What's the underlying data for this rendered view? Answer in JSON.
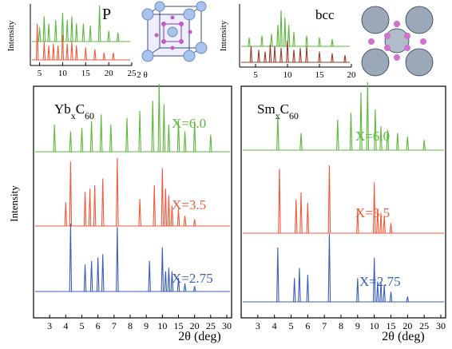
{
  "chart_data": [
    {
      "type": "stick",
      "title": "P",
      "xlabel": "2 θ",
      "ylabel": "Intensity",
      "xlim": [
        3,
        25
      ],
      "xticks": [
        5,
        10,
        15,
        20,
        25
      ],
      "ylim": [
        0,
        100
      ],
      "series": [
        {
          "color": "#5cb83a",
          "x": [
            5,
            6,
            7,
            8.5,
            10,
            11,
            12,
            13,
            14.5,
            16,
            18,
            20,
            22
          ],
          "values": [
            40,
            70,
            50,
            60,
            80,
            60,
            70,
            50,
            50,
            45,
            100,
            30,
            25
          ]
        },
        {
          "color": "#ef5a3c",
          "x": [
            4.5,
            6,
            7,
            8,
            9,
            10,
            11,
            12,
            13,
            15,
            17,
            19,
            21
          ],
          "values": [
            100,
            50,
            40,
            45,
            40,
            70,
            45,
            50,
            40,
            35,
            30,
            20,
            20
          ]
        }
      ]
    },
    {
      "type": "stick",
      "title": "bcc",
      "ylabel": "Intensity",
      "xlim": [
        2.5,
        20
      ],
      "xticks": [
        5,
        10,
        15,
        20
      ],
      "ylim": [
        0,
        100
      ],
      "series": [
        {
          "color": "#5cb83a",
          "x": [
            4,
            6,
            7.5,
            8.5,
            9,
            9.6,
            10.2,
            11,
            13,
            15,
            17
          ],
          "values": [
            25,
            30,
            35,
            60,
            100,
            80,
            60,
            40,
            30,
            25,
            20
          ]
        },
        {
          "color": "#9b3a2a",
          "x": [
            4.3,
            5.5,
            6.5,
            7.3,
            8,
            9,
            10,
            11,
            12,
            13,
            15,
            17,
            19
          ],
          "values": [
            45,
            35,
            30,
            50,
            45,
            40,
            60,
            35,
            40,
            45,
            30,
            25,
            20
          ]
        }
      ]
    },
    {
      "type": "stick",
      "title": [
        "Yb",
        "x",
        "C",
        "60"
      ],
      "xlabel": "2θ (deg)",
      "ylabel": "Intensity",
      "xscale": "tick-spaced",
      "xlim": [
        2,
        30
      ],
      "xticks": [
        3,
        4,
        5,
        6,
        7,
        8,
        9,
        10,
        15,
        20,
        25,
        30
      ],
      "ylim": [
        0,
        100
      ],
      "series": [
        {
          "name": "X=6.0",
          "color": "#5cb83a",
          "x": [
            3.3,
            4.3,
            5,
            5.6,
            6.2,
            6.8,
            7.8,
            8.6,
            9.4,
            9.8,
            10.5,
            12,
            15,
            17,
            20,
            25
          ],
          "values": [
            40,
            30,
            35,
            45,
            55,
            40,
            50,
            60,
            75,
            100,
            70,
            40,
            45,
            30,
            45,
            25
          ]
        },
        {
          "name": "X=3.5",
          "color": "#ef5a3c",
          "x": [
            4,
            4.3,
            5.2,
            5.5,
            5.8,
            6.3,
            7.2,
            8.6,
            9.5,
            10,
            11,
            12,
            13,
            15,
            17,
            20
          ],
          "values": [
            35,
            95,
            50,
            55,
            60,
            70,
            100,
            40,
            60,
            85,
            55,
            45,
            30,
            25,
            15,
            10
          ]
        },
        {
          "name": "X=2.75",
          "color": "#3a5fb8",
          "x": [
            4.3,
            5.2,
            5.6,
            6,
            6.3,
            7.2,
            9.2,
            10,
            11,
            12,
            13,
            15,
            17,
            20
          ],
          "values": [
            100,
            40,
            45,
            50,
            55,
            95,
            45,
            65,
            30,
            35,
            30,
            20,
            12,
            8
          ]
        }
      ]
    },
    {
      "type": "stick",
      "title": [
        "Sm",
        "x",
        "C",
        "60"
      ],
      "xlabel": "2θ (deg)",
      "xscale": "tick-spaced",
      "xlim": [
        2,
        30
      ],
      "xticks": [
        3,
        4,
        5,
        6,
        7,
        8,
        9,
        10,
        15,
        20,
        25,
        30
      ],
      "ylim": [
        0,
        100
      ],
      "series": [
        {
          "name": "X=6.0",
          "color": "#5cb83a",
          "x": [
            4.2,
            5.6,
            7.8,
            8.6,
            9.2,
            9.6,
            10.3,
            12,
            14,
            17,
            20,
            25
          ],
          "values": [
            50,
            25,
            45,
            55,
            85,
            100,
            60,
            35,
            30,
            25,
            20,
            15
          ]
        },
        {
          "name": "X=3.5",
          "color": "#ef5a3c",
          "x": [
            4.3,
            5.3,
            5.6,
            6,
            7.3,
            9,
            10,
            11,
            12,
            13,
            15
          ],
          "values": [
            95,
            50,
            60,
            45,
            100,
            35,
            75,
            35,
            30,
            25,
            15
          ]
        },
        {
          "name": "X=2.75",
          "color": "#3a5fb8",
          "x": [
            4.2,
            5.2,
            5.5,
            6,
            7.3,
            9,
            10,
            11,
            12,
            13,
            15,
            20
          ],
          "values": [
            80,
            35,
            50,
            40,
            100,
            35,
            65,
            30,
            30,
            25,
            15,
            8
          ]
        }
      ]
    }
  ]
}
